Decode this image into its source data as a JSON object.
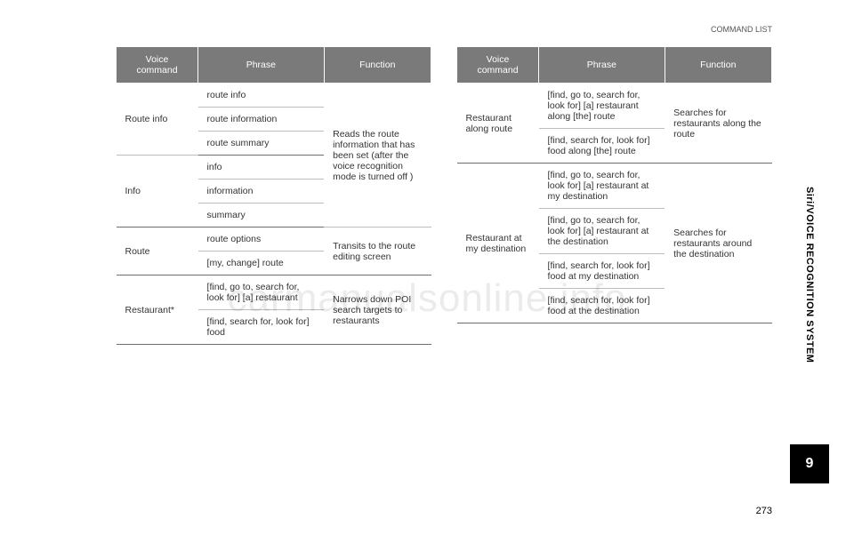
{
  "header": {
    "section": "COMMAND LIST"
  },
  "sideLabel": "Siri/VOICE RECOGNITION SYSTEM",
  "tabNumber": "9",
  "pageNumber": "273",
  "watermark": "carmanualsonline.info",
  "tableLeft": {
    "headers": {
      "vc": "Voice command",
      "ph": "Phrase",
      "fn": "Function"
    },
    "groups": [
      {
        "vc": "Route info",
        "phrases": [
          "route info",
          "route information",
          "route summary"
        ],
        "fnSpan": 6,
        "fn": "Reads the route information that has been set (after the voice recognition mode is turned off )"
      },
      {
        "vc": "Info",
        "phrases": [
          "info",
          "information",
          "summary"
        ]
      },
      {
        "vc": "Route",
        "phrases": [
          "route options",
          "[my, change] route"
        ],
        "fnSpan": 2,
        "fn": "Transits to the route editing screen"
      },
      {
        "vc": "Restaurant*",
        "phrases": [
          "[find, go to, search for, look for] [a] restaurant",
          "[find, search for, look for] food"
        ],
        "fnSpan": 2,
        "fn": "Narrows down POI search targets to restaurants"
      }
    ]
  },
  "tableRight": {
    "headers": {
      "vc": "Voice command",
      "ph": "Phrase",
      "fn": "Function"
    },
    "groups": [
      {
        "vc": "Restaurant along route",
        "phrases": [
          "[find, go to, search for, look for] [a] restaurant along [the] route",
          "[find, search for, look for] food along [the] route"
        ],
        "fnSpan": 2,
        "fn": "Searches for restaurants along the route"
      },
      {
        "vc": "Restaurant at my destination",
        "phrases": [
          "[find, go to, search for, look for] [a] restaurant at my destination",
          "[find, go to, search for, look for] [a] restaurant at the destination",
          "[find, search for, look for] food at my destination",
          "[find, search for, look for] food at the destination"
        ],
        "fnSpan": 4,
        "fn": "Searches for restaurants around the destination"
      }
    ]
  }
}
